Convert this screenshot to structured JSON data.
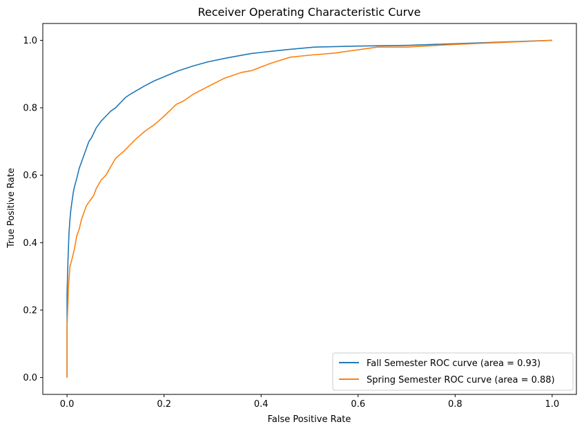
{
  "chart_data": {
    "type": "line",
    "title": "Receiver Operating Characteristic Curve",
    "xlabel": "False Positive Rate",
    "ylabel": "True Positive Rate",
    "xlim": [
      -0.05,
      1.05
    ],
    "ylim": [
      -0.05,
      1.05
    ],
    "xticks": [
      "0.0",
      "0.2",
      "0.4",
      "0.6",
      "0.8",
      "1.0"
    ],
    "yticks": [
      "0.0",
      "0.2",
      "0.4",
      "0.6",
      "0.8",
      "1.0"
    ],
    "grid": false,
    "legend_position": "lower-right",
    "series": [
      {
        "name": "Fall Semester ROC curve (area = 0.93)",
        "color": "#1f77b4",
        "x": [
          0.0,
          0.0,
          0.002,
          0.004,
          0.006,
          0.008,
          0.01,
          0.013,
          0.016,
          0.02,
          0.025,
          0.03,
          0.035,
          0.04,
          0.045,
          0.05,
          0.06,
          0.07,
          0.08,
          0.09,
          0.1,
          0.12,
          0.13,
          0.16,
          0.18,
          0.2,
          0.23,
          0.26,
          0.29,
          0.33,
          0.38,
          0.45,
          0.51,
          0.6,
          0.7,
          0.8,
          0.9,
          1.0
        ],
        "y": [
          0.0,
          0.25,
          0.35,
          0.43,
          0.47,
          0.5,
          0.52,
          0.55,
          0.57,
          0.59,
          0.62,
          0.64,
          0.66,
          0.68,
          0.7,
          0.71,
          0.74,
          0.76,
          0.775,
          0.79,
          0.8,
          0.83,
          0.84,
          0.865,
          0.88,
          0.892,
          0.91,
          0.924,
          0.936,
          0.948,
          0.961,
          0.972,
          0.98,
          0.983,
          0.985,
          0.99,
          0.995,
          1.0
        ]
      },
      {
        "name": "Spring Semester ROC curve (area = 0.88)",
        "color": "#ff7f0e",
        "x": [
          0.0,
          0.0,
          0.003,
          0.006,
          0.01,
          0.015,
          0.02,
          0.025,
          0.03,
          0.04,
          0.05,
          0.055,
          0.06,
          0.07,
          0.08,
          0.09,
          0.1,
          0.12,
          0.14,
          0.16,
          0.18,
          0.2,
          0.225,
          0.24,
          0.26,
          0.28,
          0.3,
          0.325,
          0.36,
          0.38,
          0.42,
          0.46,
          0.5,
          0.55,
          0.6,
          0.64,
          0.7,
          0.8,
          0.9,
          1.0
        ],
        "y": [
          0.0,
          0.15,
          0.27,
          0.33,
          0.35,
          0.38,
          0.42,
          0.44,
          0.47,
          0.51,
          0.53,
          0.54,
          0.56,
          0.585,
          0.6,
          0.625,
          0.65,
          0.675,
          0.705,
          0.73,
          0.75,
          0.775,
          0.81,
          0.82,
          0.84,
          0.855,
          0.87,
          0.888,
          0.905,
          0.91,
          0.932,
          0.95,
          0.956,
          0.962,
          0.972,
          0.98,
          0.98,
          0.988,
          0.994,
          1.0
        ]
      }
    ]
  }
}
